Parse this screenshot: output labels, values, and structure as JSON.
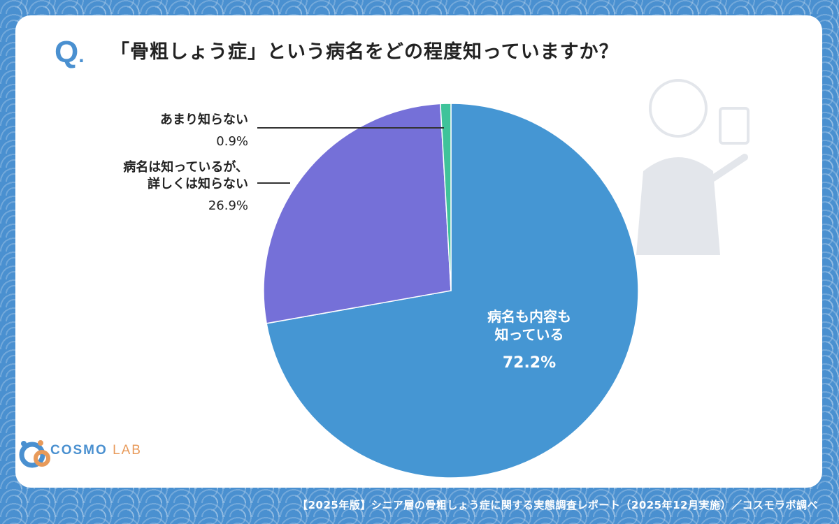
{
  "header": {
    "q_mark": "Q",
    "question": "「骨粗しょう症」という病名をどの程度知っていますか？"
  },
  "chart_data": {
    "type": "pie",
    "title": "「骨粗しょう症」という病名をどの程度知っていますか？",
    "slices": [
      {
        "label_lines": [
          "病名も内容も",
          "知っている"
        ],
        "value_label": "72.2%",
        "value": 72.2,
        "color": "#4596d3"
      },
      {
        "label_lines": [
          "病名は知っているが、",
          "詳しくは知らない"
        ],
        "value_label": "26.9%",
        "value": 26.9,
        "color": "#7570d8"
      },
      {
        "label_lines": [
          "あまり知らない"
        ],
        "value_label": "0.9%",
        "value": 0.9,
        "color": "#3fc39a"
      }
    ]
  },
  "logo": {
    "part1": "COSMO",
    "part2": "LAB",
    "accent_blue": "#4a90d0",
    "accent_orange": "#e89a5a"
  },
  "footer": {
    "source": "【2025年版】シニア層の骨粗しょう症に関する実態調査レポート（2025年12月実施）／コスモラボ調べ"
  }
}
